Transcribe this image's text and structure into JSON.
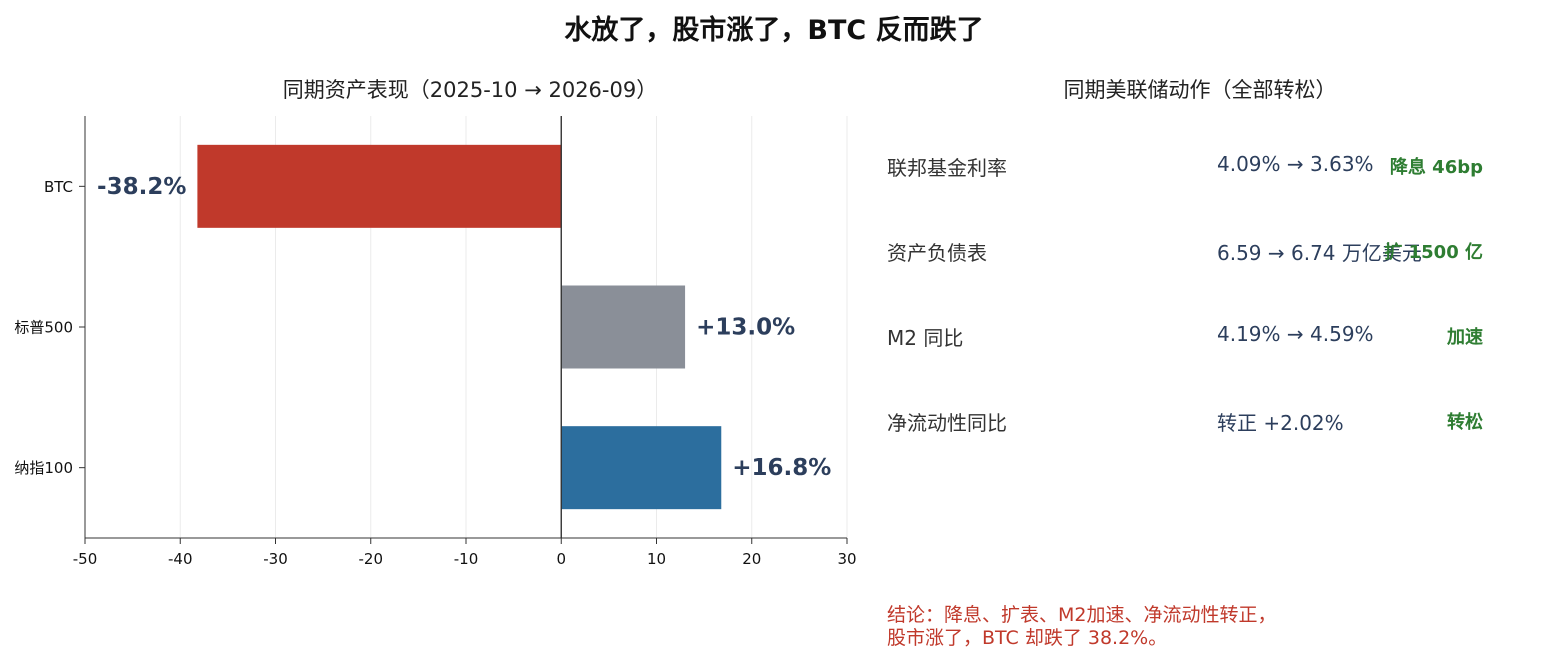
{
  "main_title": "水放了，股市涨了，BTC 反而跌了",
  "chart_data": {
    "type": "bar",
    "orientation": "horizontal",
    "title": "同期资产表现（2025-10 → 2026-09）",
    "categories": [
      "BTC",
      "标普500",
      "纳指100"
    ],
    "values": [
      -38.2,
      13.0,
      16.8
    ],
    "value_labels": [
      "-38.2%",
      "+13.0%",
      "+16.8%"
    ],
    "colors": [
      "#c0392b",
      "#8a8f98",
      "#2c6e9e"
    ],
    "label_color": "#2c3e5c",
    "xlim": [
      -50,
      30
    ],
    "xticks": [
      -50,
      -40,
      -30,
      -20,
      -10,
      0,
      10,
      20,
      30
    ],
    "xlabel": "",
    "ylabel": "",
    "grid": "vertical"
  },
  "fed_panel": {
    "title": "同期美联储动作（全部转松）",
    "rows": [
      {
        "name": "联邦基金利率",
        "value": "4.09% → 3.63%",
        "tag": "降息 46bp"
      },
      {
        "name": "资产负债表",
        "value": "6.59 → 6.74 万亿美元",
        "tag": "扩 1500 亿"
      },
      {
        "name": "M2 同比",
        "value": "4.19% → 4.59%",
        "tag": "加速"
      },
      {
        "name": "净流动性同比",
        "value": "转正 +2.02%",
        "tag": "转松"
      }
    ],
    "tag_color": "#2e7d32"
  },
  "conclusion": {
    "line1": "结论：降息、扩表、M2加速、净流动性转正，",
    "line2": "股市涨了，BTC 却跌了 38.2%。"
  }
}
